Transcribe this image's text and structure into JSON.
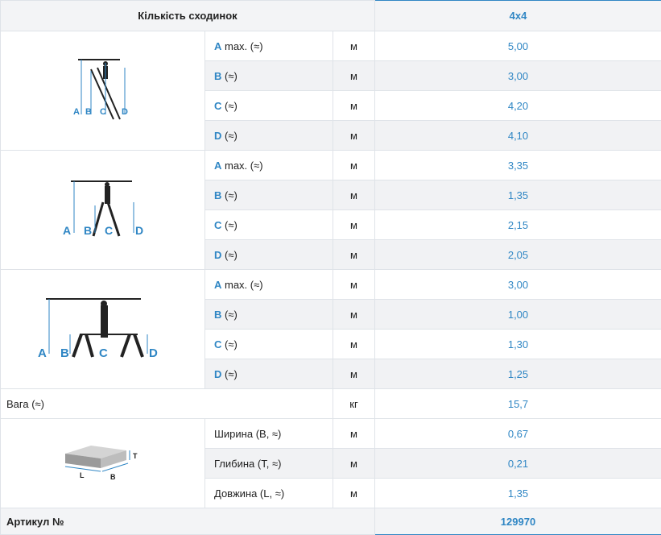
{
  "header": {
    "title": "Кількість сходинок",
    "value": "4x4"
  },
  "sections": [
    {
      "rows": [
        {
          "key": "A",
          "rest": " max. (≈)",
          "unit": "м",
          "value": "5,00"
        },
        {
          "key": "B",
          "rest": " (≈)",
          "unit": "м",
          "value": "3,00"
        },
        {
          "key": "C",
          "rest": " (≈)",
          "unit": "м",
          "value": "4,20"
        },
        {
          "key": "D",
          "rest": " (≈)",
          "unit": "м",
          "value": "4,10"
        }
      ]
    },
    {
      "rows": [
        {
          "key": "A",
          "rest": " max. (≈)",
          "unit": "м",
          "value": "3,35"
        },
        {
          "key": "B",
          "rest": " (≈)",
          "unit": "м",
          "value": "1,35"
        },
        {
          "key": "C",
          "rest": " (≈)",
          "unit": "м",
          "value": "2,15"
        },
        {
          "key": "D",
          "rest": " (≈)",
          "unit": "м",
          "value": "2,05"
        }
      ]
    },
    {
      "rows": [
        {
          "key": "A",
          "rest": " max. (≈)",
          "unit": "м",
          "value": "3,00"
        },
        {
          "key": "B",
          "rest": " (≈)",
          "unit": "м",
          "value": "1,00"
        },
        {
          "key": "C",
          "rest": " (≈)",
          "unit": "м",
          "value": "1,30"
        },
        {
          "key": "D",
          "rest": " (≈)",
          "unit": "м",
          "value": "1,25"
        }
      ]
    }
  ],
  "weight": {
    "label": "Вага (≈)",
    "unit": "кг",
    "value": "15,7"
  },
  "dimensions": [
    {
      "label": "Ширина (B, ≈)",
      "unit": "м",
      "value": "0,67"
    },
    {
      "label": "Глибина (T, ≈)",
      "unit": "м",
      "value": "0,21"
    },
    {
      "label": "Довжина (L, ≈)",
      "unit": "м",
      "value": "1,35"
    }
  ],
  "diagram_letters": {
    "a": "A",
    "b": "B",
    "c": "C",
    "d": "D",
    "t": "T",
    "l": "L",
    "w": "B"
  },
  "article": {
    "label": "Артикул №",
    "value": "129970"
  },
  "colors": {
    "accent": "#2f86c4",
    "row_alt": "#f1f2f4",
    "border": "#dfe3e8"
  },
  "icons": [
    "ladder-lean-diagram-icon",
    "ladder-aframe-diagram-icon",
    "ladder-platform-diagram-icon",
    "package-box-icon"
  ]
}
